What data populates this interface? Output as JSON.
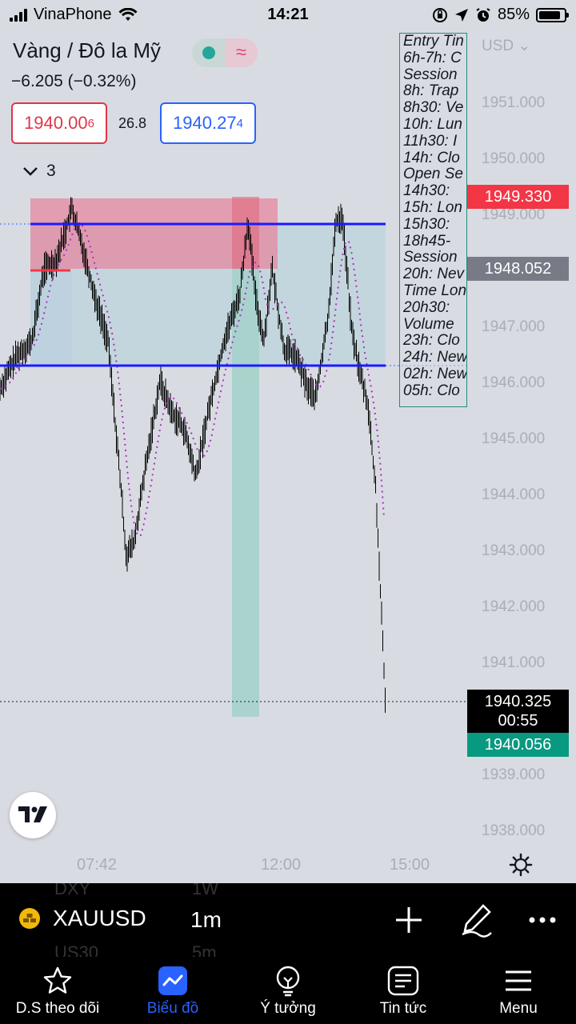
{
  "status_bar": {
    "carrier": "VinaPhone",
    "time": "14:21",
    "battery": "85%",
    "battery_level": 0.85
  },
  "header": {
    "symbol_name": "Vàng / Đô la Mỹ",
    "change": "−6.205 (−0.32%)",
    "bid_main": "1940.00",
    "bid_sup": "6",
    "spread": "26.8",
    "ask_main": "1940.27",
    "ask_sup": "4",
    "indicator_count": "3",
    "status_dot_color": "#26a69a"
  },
  "info_panel": {
    "lines": [
      "Entry Tin",
      "6h-7h: C",
      "Session",
      "8h: Trap",
      "8h30: Ve",
      "10h: Lun",
      "11h30: I",
      "14h: Clo",
      "Open Se",
      "14h30: ",
      "15h: Lon",
      "15h30: ",
      "18h45- ",
      "Session",
      "20h: Nev",
      "Time Lon",
      "20h30: ",
      "Volume",
      "23h: Clo",
      "24h: New",
      "02h: New",
      "05h: Clo"
    ]
  },
  "price_axis": {
    "currency": "USD",
    "ticks": [
      "1951.000",
      "1950.000",
      "1949.000",
      "1948.000",
      "1947.000",
      "1946.000",
      "1945.000",
      "1944.000",
      "1943.000",
      "1942.000",
      "1941.000",
      "1940.000",
      "1939.000",
      "1938.000"
    ],
    "tag_red": "1949.330",
    "tag_gray": "1948.052",
    "tag_black_price": "1940.325",
    "tag_black_countdown": "00:55",
    "tag_green": "1940.056"
  },
  "time_axis": {
    "labels": [
      "07:42",
      "12:00",
      "15:00"
    ]
  },
  "toolbar": {
    "ghost_symbol_top": "DXY",
    "ghost_interval_top": "1W",
    "ghost_symbol_bottom": "US30",
    "ghost_interval_bottom": "5m",
    "symbol": "XAUUSD",
    "interval": "1m"
  },
  "nav": {
    "items": [
      {
        "label": "D.S theo dõi",
        "icon": "star-icon"
      },
      {
        "label": "Biểu đồ",
        "icon": "chart-icon"
      },
      {
        "label": "Ý tưởng",
        "icon": "lightbulb-icon"
      },
      {
        "label": "Tin tức",
        "icon": "news-icon"
      },
      {
        "label": "Menu",
        "icon": "menu-icon"
      }
    ]
  },
  "colors": {
    "level_line": "#1a1aff",
    "ma_line": "#b02ec2",
    "sell_zone": "#e8829b",
    "buy_zone": "#a6d1cc",
    "accent": "#2962ff"
  }
}
